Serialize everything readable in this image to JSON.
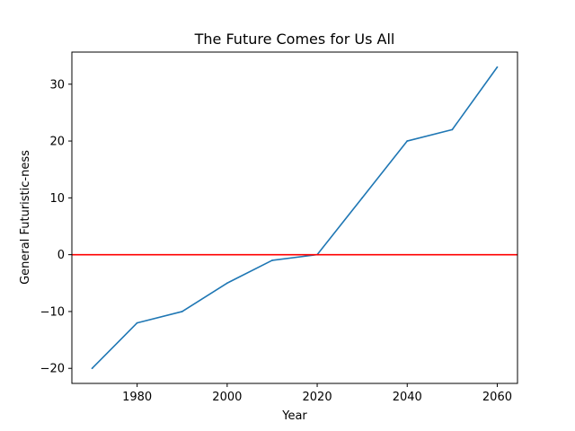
{
  "chart_data": {
    "type": "line",
    "title": "The Future Comes for Us All",
    "xlabel": "Year",
    "ylabel": "General Futuristic-ness",
    "x": [
      1970,
      1980,
      1990,
      2000,
      2010,
      2020,
      2030,
      2040,
      2050,
      2060
    ],
    "series": [
      {
        "values": [
          -20,
          -12,
          -10,
          -5,
          -1,
          0,
          10,
          20,
          22,
          33
        ],
        "color": "#1f77b4"
      }
    ],
    "reference_line": {
      "y": 0,
      "color": "#ff0000"
    },
    "xlim": [
      1965.5,
      2064.5
    ],
    "ylim": [
      -22.65,
      35.65
    ],
    "xticks": [
      1980,
      2000,
      2020,
      2040,
      2060
    ],
    "xtick_labels": [
      "1980",
      "2000",
      "2020",
      "2040",
      "2060"
    ],
    "yticks": [
      -20,
      -10,
      0,
      10,
      20,
      30
    ],
    "ytick_labels": [
      "−20",
      "−10",
      "0",
      "10",
      "20",
      "30"
    ],
    "grid": false,
    "legend": "none"
  }
}
